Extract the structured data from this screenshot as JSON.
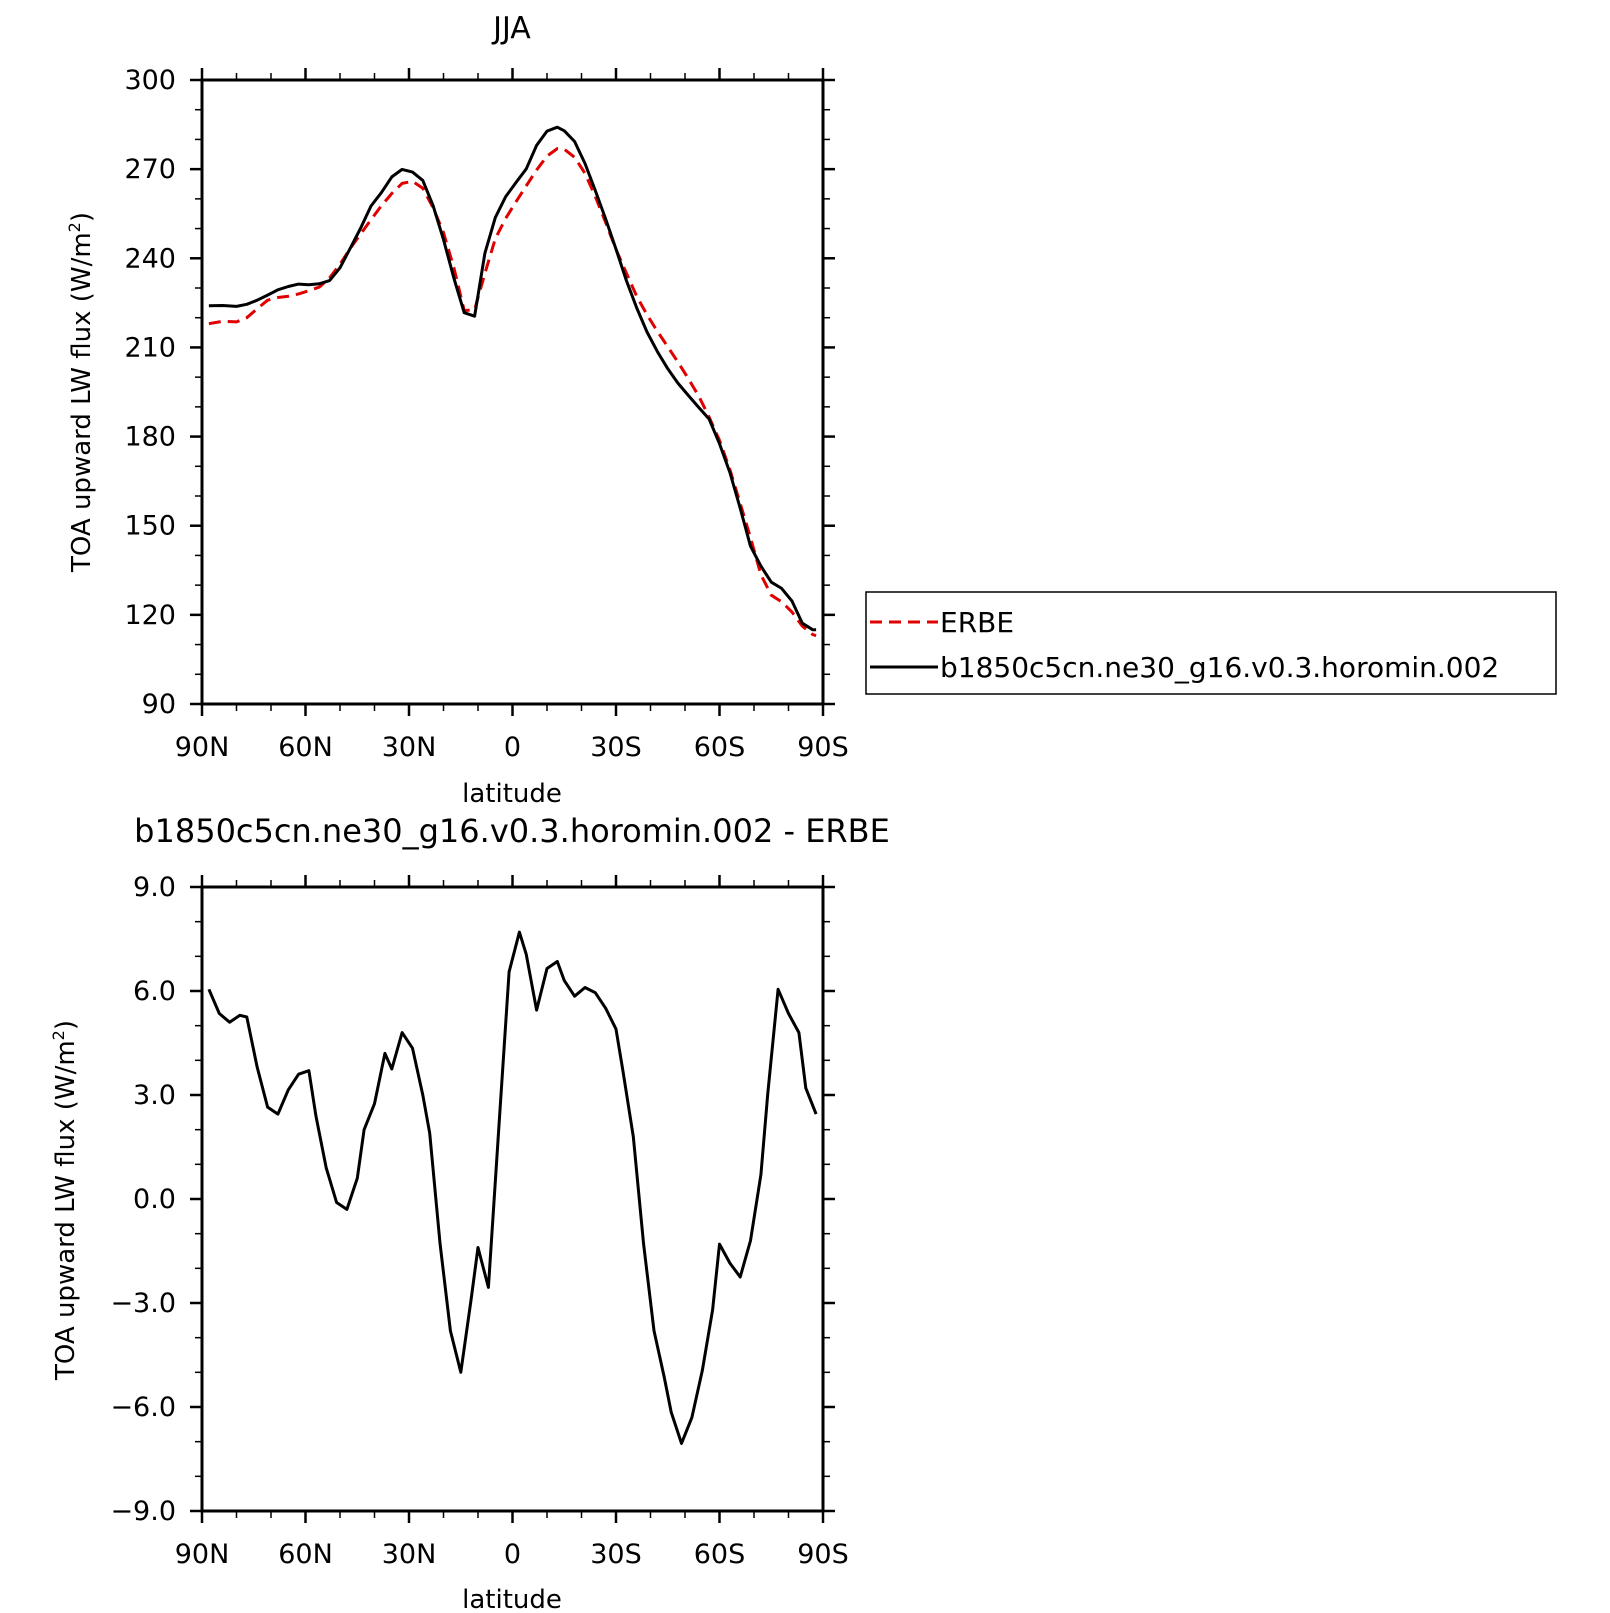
{
  "chart_data": [
    {
      "type": "line",
      "title": "JJA",
      "xlabel": "latitude",
      "ylabel": "TOA upward LW flux (W/m",
      "ylabel_sup": "2",
      "ylabel_close": ")",
      "xlim": [
        90,
        -90
      ],
      "ylim": [
        90,
        300
      ],
      "xticks": [
        90,
        60,
        30,
        0,
        -30,
        -60,
        -90
      ],
      "xtick_labels": [
        "90N",
        "60N",
        "30N",
        "0",
        "30S",
        "60S",
        "90S"
      ],
      "yticks": [
        90,
        120,
        150,
        180,
        210,
        240,
        270,
        300
      ],
      "ytick_labels": [
        "90",
        "120",
        "150",
        "180",
        "210",
        "240",
        "270",
        "300"
      ],
      "legend_position": "right",
      "series": [
        {
          "name": "ERBE",
          "color": "#e00000",
          "dash": true,
          "x": [
            88,
            84,
            80,
            77,
            74,
            71,
            68,
            65,
            62,
            59,
            56,
            53,
            50,
            47,
            44,
            41,
            38,
            35,
            32,
            29,
            26,
            23,
            20,
            17,
            14,
            11,
            8,
            5,
            2,
            -1,
            -4,
            -7,
            -10,
            -13,
            -15,
            -18,
            -21,
            -24,
            -27,
            -30,
            -33,
            -36,
            -39,
            -42,
            -45,
            -48,
            -51,
            -54,
            -57,
            -60,
            -63,
            -66,
            -69,
            -72,
            -75,
            -78,
            -81,
            -84,
            -87,
            -88
          ],
          "y": [
            218,
            218.8,
            218.6,
            220,
            223,
            225.9,
            226.8,
            227.2,
            228,
            229.1,
            230.3,
            233.4,
            238,
            243.4,
            248.2,
            253,
            257.7,
            261.8,
            265.2,
            265.9,
            263.6,
            257,
            248.6,
            236.8,
            222.4,
            222.7,
            234.9,
            246.6,
            253.4,
            259,
            264.4,
            269.7,
            274.4,
            276.9,
            276.7,
            274,
            268.6,
            260.8,
            252,
            243,
            235,
            227.2,
            221,
            215.4,
            210.2,
            205,
            199.4,
            193.6,
            186.6,
            178.7,
            168.9,
            157.5,
            146,
            133.5,
            126.6,
            124.4,
            121,
            116.2,
            113.4,
            113
          ]
        },
        {
          "name": "b1850c5cn.ne30_g16.v0.3.horomin.002",
          "color": "#000000",
          "dash": false,
          "x": [
            88,
            84,
            80,
            77,
            74,
            71,
            68,
            65,
            62,
            59,
            56,
            53,
            50,
            47,
            44,
            41,
            38,
            35,
            32,
            29,
            26,
            23,
            20,
            17,
            14,
            11,
            8,
            5,
            2,
            -1,
            -4,
            -7,
            -10,
            -13,
            -15,
            -18,
            -21,
            -24,
            -27,
            -30,
            -33,
            -36,
            -39,
            -42,
            -45,
            -48,
            -51,
            -54,
            -57,
            -60,
            -63,
            -66,
            -69,
            -72,
            -75,
            -78,
            -81,
            -84,
            -87,
            -88
          ],
          "y": [
            224,
            224.1,
            223.8,
            224.5,
            225.9,
            227.6,
            229.4,
            230.5,
            231.3,
            231.1,
            231.4,
            232.5,
            236.8,
            243.5,
            250.2,
            257.6,
            262.1,
            267.4,
            269.9,
            269,
            266.2,
            257.7,
            246.3,
            233.3,
            221.7,
            220.5,
            241.7,
            253.7,
            260.7,
            265.5,
            270.1,
            278,
            282.8,
            284.1,
            282.9,
            279.3,
            271.9,
            262.8,
            253.2,
            243.1,
            232.5,
            223.3,
            215.2,
            208.6,
            202.8,
            197.9,
            193.8,
            189.8,
            185.9,
            177.6,
            167.9,
            155.9,
            143.1,
            136.4,
            131,
            128.9,
            124.7,
            117.2,
            115,
            115
          ]
        }
      ]
    },
    {
      "type": "line",
      "title": "b1850c5cn.ne30_g16.v0.3.horomin.002 - ERBE",
      "xlabel": "latitude",
      "ylabel": "TOA upward LW flux (W/m",
      "ylabel_sup": "2",
      "ylabel_close": ")",
      "xlim": [
        90,
        -90
      ],
      "ylim": [
        -9,
        9
      ],
      "xticks": [
        90,
        60,
        30,
        0,
        -30,
        -60,
        -90
      ],
      "xtick_labels": [
        "90N",
        "60N",
        "30N",
        "0",
        "30S",
        "60S",
        "90S"
      ],
      "yticks": [
        -9,
        -6,
        -3,
        0,
        3,
        6,
        9
      ],
      "ytick_labels": [
        "−9.0",
        "−6.0",
        "−3.0",
        "0.0",
        "3.0",
        "6.0",
        "9.0"
      ],
      "series": [
        {
          "color": "#000000",
          "dash": false,
          "x": [
            88,
            85,
            82,
            79,
            77,
            74,
            71,
            68,
            65,
            62,
            59,
            57,
            54,
            51,
            48,
            45,
            43,
            40,
            37,
            35,
            32,
            29,
            26,
            24,
            21,
            18,
            15,
            12,
            10,
            7,
            4,
            1,
            -2,
            -4,
            -7,
            -10,
            -13,
            -15,
            -18,
            -21,
            -24,
            -27,
            -30,
            -32,
            -35,
            -38,
            -41,
            -44,
            -46,
            -49,
            -52,
            -55,
            -58,
            -60,
            -63,
            -66,
            -69,
            -72,
            -74,
            -77,
            -80,
            -83,
            -85,
            -88
          ],
          "y": [
            6.05,
            5.35,
            5.1,
            5.3,
            5.25,
            3.8,
            2.65,
            2.45,
            3.15,
            3.6,
            3.7,
            2.4,
            0.9,
            -0.1,
            -0.3,
            0.6,
            2.0,
            2.75,
            4.2,
            3.75,
            4.8,
            4.35,
            3.0,
            1.9,
            -1.3,
            -3.8,
            -5.0,
            -2.9,
            -1.4,
            -2.55,
            2.0,
            6.55,
            7.7,
            7.05,
            5.45,
            6.65,
            6.85,
            6.3,
            5.85,
            6.1,
            5.95,
            5.5,
            4.9,
            3.7,
            1.8,
            -1.3,
            -3.8,
            -5.15,
            -6.15,
            -7.05,
            -6.3,
            -4.95,
            -3.2,
            -1.3,
            -1.85,
            -2.25,
            -1.2,
            0.7,
            3.05,
            6.05,
            5.35,
            4.8,
            3.2,
            2.45
          ]
        }
      ]
    }
  ]
}
